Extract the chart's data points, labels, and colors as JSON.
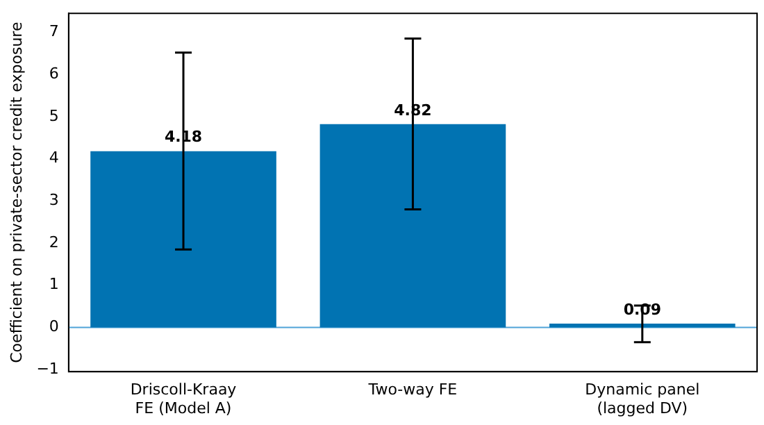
{
  "chart_data": {
    "type": "bar",
    "ylabel": "Coefficient on private-sector credit exposure",
    "categories": [
      "Driscoll-Kraay\nFE (Model A)",
      "Two-way FE",
      "Dynamic panel\n(lagged DV)"
    ],
    "values": [
      4.18,
      4.82,
      0.09
    ],
    "color": "#0173b2",
    "errors": [
      [
        1.85,
        6.52
      ],
      [
        2.8,
        6.85
      ],
      [
        -0.35,
        0.52
      ]
    ],
    "data_labels": true,
    "ylim": [
      -1.05,
      7.45
    ],
    "yticks": [
      -1,
      0,
      1,
      2,
      3,
      4,
      5,
      6,
      7
    ],
    "ref_lines": [
      {
        "axis": "y",
        "value": 0,
        "color": "#4fa3d8"
      }
    ],
    "grid": false,
    "legend": false
  }
}
